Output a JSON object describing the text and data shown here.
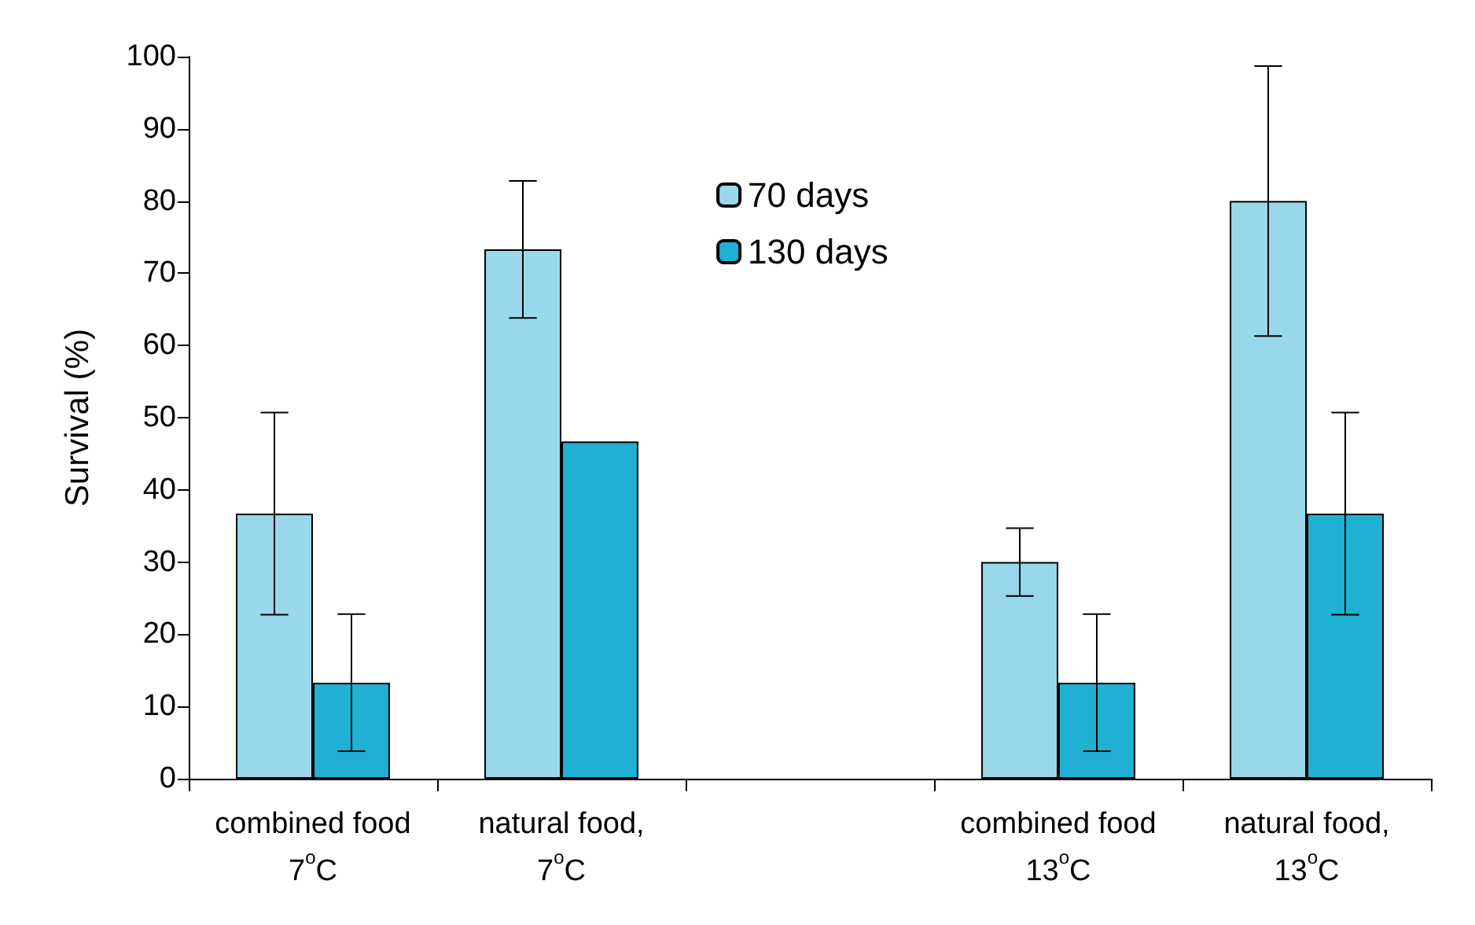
{
  "chart_data": {
    "type": "bar",
    "ylabel": "Survival (%)",
    "categories": [
      "combined food\n7$^{o}$C",
      "natural food,\n7$^{o}$C",
      null,
      "combined food\n13$^{o}$C",
      "natural food,\n13$^{o}$C"
    ],
    "series": [
      {
        "name": "70 days",
        "color": "#99d8ea",
        "values": [
          36.7,
          73.3,
          null,
          30,
          80
        ],
        "errors": [
          14,
          9.5,
          null,
          4.7,
          18.7
        ]
      },
      {
        "name": "130 days",
        "color": "#1fb0d4",
        "values": [
          13.3,
          46.7,
          null,
          13.3,
          36.7
        ],
        "errors": [
          9.5,
          null,
          null,
          9.5,
          14
        ]
      }
    ],
    "ylim": [
      0,
      100
    ],
    "yticks": [
      0,
      10,
      20,
      30,
      40,
      50,
      60,
      70,
      80,
      90,
      100
    ],
    "grid": false,
    "legend": "top"
  }
}
